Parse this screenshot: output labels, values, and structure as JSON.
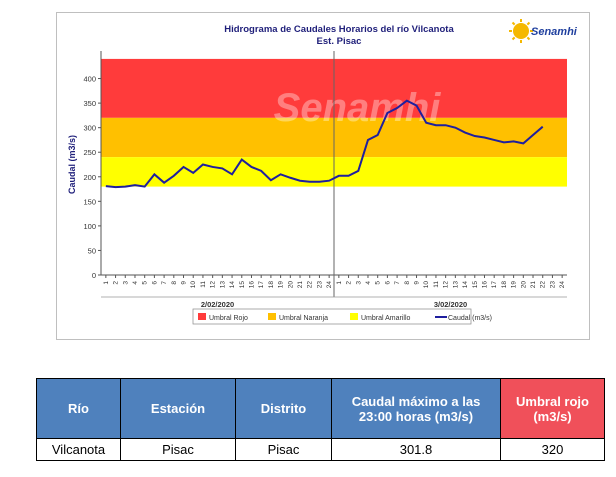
{
  "logo": {
    "text": "Senamhi",
    "watermark": "Senamhi"
  },
  "chart_data": {
    "type": "line",
    "title": "Hidrograma de Caudales Horarios del río Vilcanota",
    "subtitle": "Est. Pisac",
    "ylabel": "Caudal (m3/s)",
    "xlabel": "",
    "ylim": [
      0,
      450
    ],
    "yticks": [
      0,
      50,
      100,
      150,
      200,
      250,
      300,
      350,
      400
    ],
    "x_tick_labels": [
      "1",
      "2",
      "3",
      "4",
      "5",
      "6",
      "7",
      "8",
      "9",
      "10",
      "11",
      "12",
      "13",
      "14",
      "15",
      "16",
      "17",
      "18",
      "19",
      "20",
      "21",
      "22",
      "23",
      "24",
      "1",
      "2",
      "3",
      "4",
      "5",
      "6",
      "7",
      "8",
      "9",
      "10",
      "11",
      "12",
      "13",
      "14",
      "15",
      "16",
      "17",
      "18",
      "19",
      "20",
      "21",
      "22",
      "23",
      "24"
    ],
    "day_labels": [
      "2/02/2020",
      "3/02/2020"
    ],
    "bands": [
      {
        "name": "Umbral Rojo",
        "from": 320,
        "to": 440,
        "color": "#ff3b3b"
      },
      {
        "name": "Umbral Naranja",
        "from": 240,
        "to": 320,
        "color": "#ffc000"
      },
      {
        "name": "Umbral Amarillo",
        "from": 180,
        "to": 240,
        "color": "#ffff00"
      }
    ],
    "series": [
      {
        "name": "Caudal (m3/s)",
        "color": "#1f1f9e",
        "values": [
          181,
          179,
          180,
          183,
          180,
          205,
          188,
          202,
          220,
          208,
          225,
          220,
          217,
          205,
          235,
          220,
          212,
          193,
          205,
          198,
          192,
          190,
          190,
          192,
          202,
          202,
          212,
          275,
          285,
          330,
          340,
          355,
          345,
          310,
          305,
          305,
          300,
          290,
          283,
          280,
          275,
          270,
          272,
          268,
          285,
          302
        ]
      }
    ],
    "legend": [
      "Umbral Rojo",
      "Umbral Naranja",
      "Umbral Amarillo",
      "Caudal (m3/s)"
    ],
    "legend_position": "bottom",
    "grid": false
  },
  "table": {
    "headers": [
      "Río",
      "Estación",
      "Distrito",
      "Caudal máximo a las 23:00 horas (m3/s)",
      "Umbral rojo (m3/s)"
    ],
    "row": [
      "Vilcanota",
      "Pisac",
      "Pisac",
      "301.8",
      "320"
    ]
  }
}
